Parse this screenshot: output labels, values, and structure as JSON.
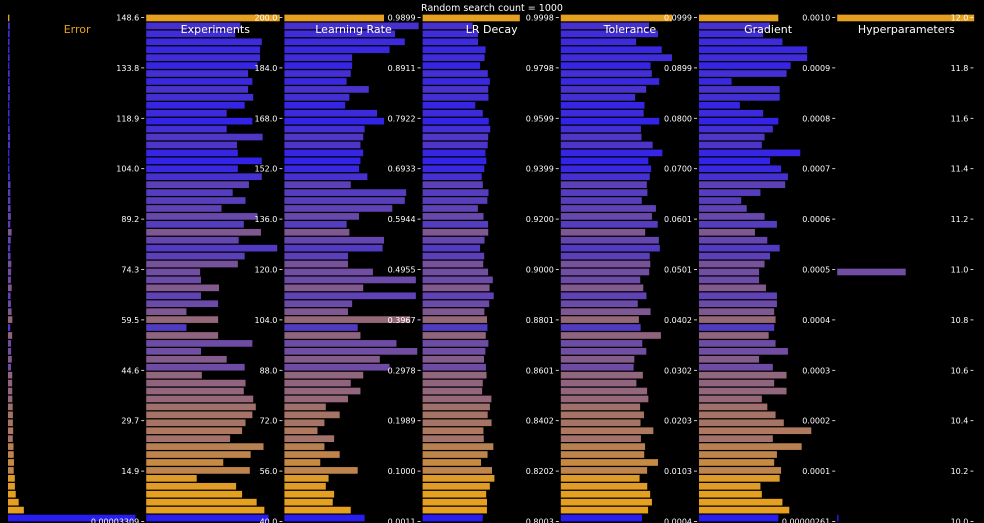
{
  "chart_data": {
    "type": "bar",
    "title": "Random search count = 1000",
    "bar_count": 64,
    "colors": {
      "background": "#000000",
      "error_high": "#e5a020",
      "error_low": "#2a1df0",
      "title_active": "#e8a317",
      "title": "#ffffff",
      "tick": "#ffffff"
    },
    "columns": [
      {
        "name": "Error",
        "ticks": [
          "148.6",
          "133.8",
          "118.9",
          "104.0",
          "89.2",
          "74.3",
          "59.5",
          "44.6",
          "29.7",
          "14.9",
          "0.00003309"
        ],
        "axis_min": 0,
        "axis_max": 148.6,
        "values": [
          1.2,
          2.0,
          1.8,
          1.7,
          1.6,
          1.8,
          1.5,
          1.9,
          1.6,
          2.1,
          1.9,
          1.5,
          1.7,
          1.4,
          1.9,
          2.3,
          2.2,
          1.5,
          1.4,
          1.6,
          2.0,
          2.7,
          2.5,
          2.6,
          2.8,
          3.1,
          2.5,
          3.9,
          3.0,
          2.4,
          2.7,
          3.6,
          3.4,
          3.2,
          4.0,
          2.8,
          3.2,
          3.9,
          4.7,
          2.4,
          4.5,
          3.3,
          3.4,
          4.1,
          3.3,
          4.6,
          4.5,
          4.6,
          4.7,
          5.1,
          5.3,
          5.3,
          5.6,
          5.2,
          6.0,
          6.2,
          6.5,
          6.2,
          7.4,
          7.5,
          8.4,
          11.6,
          17.2,
          148.6
        ]
      },
      {
        "name": "Experiments",
        "ticks": [
          "200.0",
          "184.0",
          "168.0",
          "152.0",
          "136.0",
          "120.0",
          "104.0",
          "88.0",
          "72.0",
          "56.0",
          "40.0"
        ],
        "axis_min": 40,
        "axis_max": 200,
        "values": [
          196,
          150,
          144,
          175,
          173,
          173,
          170,
          159,
          164,
          159,
          165,
          155,
          134,
          164,
          134,
          176,
          146,
          147,
          175,
          147,
          175,
          160,
          141,
          156,
          128,
          170,
          154,
          174,
          148,
          193,
          155,
          147,
          103,
          104,
          125,
          104,
          124,
          87,
          124,
          87,
          124,
          164,
          104,
          134,
          155,
          105,
          156,
          154,
          165,
          168,
          164,
          156,
          152,
          138,
          177,
          162,
          130,
          161,
          99,
          145,
          152,
          169,
          178,
          183
        ]
      },
      {
        "name": "Learning Rate",
        "ticks": [
          "0.9899",
          "0.8911",
          "0.7922",
          "0.6933",
          "0.5944",
          "0.4955",
          "0.3967",
          "0.2978",
          "0.1989",
          "0.1000",
          "0.0011"
        ],
        "axis_min": 0.0011,
        "axis_max": 0.9899,
        "values": [
          0.72,
          0.97,
          0.8,
          0.87,
          0.76,
          0.49,
          0.49,
          0.48,
          0.45,
          0.61,
          0.47,
          0.44,
          0.67,
          0.72,
          0.58,
          0.57,
          0.55,
          0.57,
          0.55,
          0.54,
          0.6,
          0.48,
          0.88,
          0.87,
          0.78,
          0.54,
          0.45,
          0.47,
          0.72,
          0.71,
          0.46,
          0.46,
          0.64,
          0.95,
          0.57,
          0.95,
          0.49,
          0.46,
          0.91,
          0.53,
          0.55,
          0.81,
          0.96,
          0.69,
          0.76,
          0.57,
          0.48,
          0.55,
          0.46,
          0.3,
          0.4,
          0.29,
          0.24,
          0.36,
          0.29,
          0.4,
          0.26,
          0.53,
          0.32,
          0.3,
          0.36,
          0.35,
          0.48,
          0.58
        ]
      },
      {
        "name": "LR Decay",
        "ticks": [
          "0.9998",
          "0.9798",
          "0.9599",
          "0.9399",
          "0.9200",
          "0.9000",
          "0.8801",
          "0.8601",
          "0.8402",
          "0.8202",
          "0.8003"
        ],
        "axis_min": 0.8003,
        "axis_max": 0.9998,
        "values": [
          0.9419,
          0.8731,
          0.8811,
          0.881,
          0.892,
          0.8906,
          0.884,
          0.8952,
          0.8982,
          0.8959,
          0.8962,
          0.877,
          0.8879,
          0.8966,
          0.8988,
          0.8958,
          0.8951,
          0.8918,
          0.8931,
          0.8902,
          0.8863,
          0.888,
          0.8963,
          0.8946,
          0.8808,
          0.889,
          0.8957,
          0.8959,
          0.8905,
          0.884,
          0.89,
          0.8886,
          0.8957,
          0.9025,
          0.8978,
          0.9039,
          0.8973,
          0.8903,
          0.8941,
          0.8947,
          0.8923,
          0.8961,
          0.8917,
          0.8897,
          0.8925,
          0.8934,
          0.8879,
          0.887,
          0.9005,
          0.8983,
          0.8951,
          0.9007,
          0.8889,
          0.8894,
          0.9033,
          0.8949,
          0.8854,
          0.9014,
          0.9049,
          0.8982,
          0.8929,
          0.8941,
          0.894,
          0.8878
        ]
      },
      {
        "name": "Tolerance",
        "ticks": [
          "0.0999",
          "0.0899",
          "0.0800",
          "0.0700",
          "0.0601",
          "0.0501",
          "0.0402",
          "0.0302",
          "0.0203",
          "0.0103",
          "0.0004"
        ],
        "axis_min": 0.0004,
        "axis_max": 0.0999,
        "values": [
          0.0812,
          0.0645,
          0.071,
          0.0551,
          0.0737,
          0.0812,
          0.0656,
          0.0665,
          0.0719,
          0.0624,
          0.0544,
          0.0612,
          0.0606,
          0.0719,
          0.0586,
          0.059,
          0.0671,
          0.0741,
          0.064,
          0.066,
          0.065,
          0.0629,
          0.0633,
          0.0592,
          0.0695,
          0.0666,
          0.0708,
          0.0617,
          0.0716,
          0.0723,
          0.065,
          0.0654,
          0.0646,
          0.0581,
          0.0603,
          0.0626,
          0.0563,
          0.0656,
          0.0571,
          0.0584,
          0.0731,
          0.0596,
          0.0625,
          0.0538,
          0.0533,
          0.06,
          0.0553,
          0.0631,
          0.064,
          0.058,
          0.0608,
          0.0583,
          0.0676,
          0.0586,
          0.0616,
          0.061,
          0.071,
          0.0631,
          0.0576,
          0.0632,
          0.0653,
          0.0666,
          0.0638,
          0.0594
        ]
      },
      {
        "name": "Gradient",
        "ticks": [
          "0.0010",
          "0.0009",
          "0.0008",
          "0.0007",
          "0.0006",
          "0.0005",
          "0.0004",
          "0.0003",
          "0.0002",
          "0.0001",
          "0.00000261"
        ],
        "axis_min": 2.61e-06,
        "axis_max": 0.001,
        "values": [
          0.00058,
          0.00052,
          0.00047,
          0.00061,
          0.00079,
          0.00079,
          0.00067,
          0.00064,
          0.00024,
          0.00059,
          0.00059,
          0.0003,
          0.00047,
          0.00058,
          0.00054,
          0.00048,
          0.00046,
          0.00074,
          0.00052,
          0.0006,
          0.00065,
          0.00063,
          0.00045,
          0.00031,
          0.00035,
          0.00048,
          0.00057,
          0.00041,
          0.0005,
          0.00059,
          0.00052,
          0.00048,
          0.00044,
          0.00044,
          0.00049,
          0.00057,
          0.00057,
          0.00055,
          0.00056,
          0.00055,
          0.00051,
          0.00056,
          0.00065,
          0.00044,
          0.00054,
          0.00064,
          0.00055,
          0.00064,
          0.00046,
          0.0005,
          0.00056,
          0.00062,
          0.00082,
          0.00054,
          0.00075,
          0.00057,
          0.00055,
          0.0006,
          0.00059,
          0.00045,
          0.00046,
          0.00061,
          0.00066,
          0.00058
        ]
      },
      {
        "name": "Hyperparameters",
        "ticks": [
          "12.0",
          "11.8",
          "11.6",
          "11.4",
          "11.2",
          "11.0",
          "10.8",
          "10.6",
          "10.4",
          "10.2",
          "10.0"
        ],
        "axis_min": 10,
        "axis_max": 12,
        "values": [
          12,
          0,
          0,
          0,
          0,
          0,
          0,
          0,
          0,
          0,
          0,
          0,
          0,
          0,
          0,
          0,
          0,
          0,
          0,
          0,
          0,
          0,
          0,
          0,
          0,
          0,
          0,
          0,
          0,
          0,
          0,
          0,
          11,
          0,
          0,
          0,
          0,
          0,
          0,
          0,
          0,
          0,
          0,
          0,
          0,
          0,
          0,
          0,
          0,
          0,
          0,
          0,
          0,
          0,
          0,
          0,
          0,
          0,
          0,
          0,
          0,
          0,
          0,
          10
        ]
      }
    ]
  }
}
